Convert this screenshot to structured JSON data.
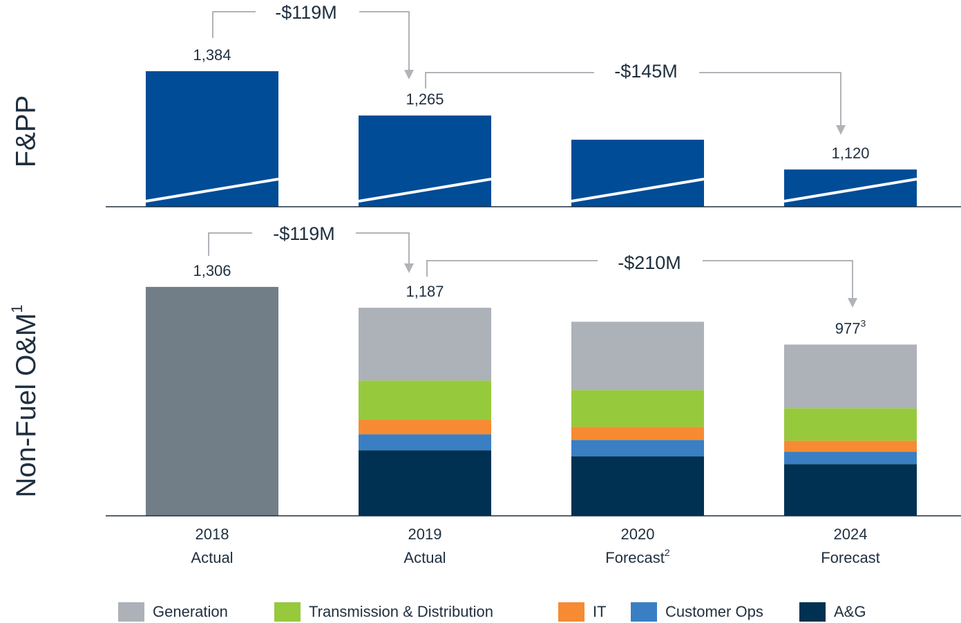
{
  "chart_data": [
    {
      "type": "bar",
      "ylabel": "F&PP",
      "categories": [
        "2018",
        "2019",
        "2020",
        "2024"
      ],
      "values": [
        1384,
        1265,
        1200,
        1120
      ],
      "value_labels": [
        "1,384",
        "1,265",
        null,
        "1,120"
      ],
      "color": "#004c97",
      "ylim": [
        1020,
        1420
      ],
      "axis_break": true,
      "annotations": [
        "-$119M",
        "-$145M"
      ]
    },
    {
      "type": "stacked_bar",
      "ylabel": "Non-Fuel O&M",
      "ylabel_note": "1",
      "categories": [
        "2018",
        "2019",
        "2020",
        "2024"
      ],
      "category_subtitles": [
        "Actual",
        "Actual",
        "Forecast",
        "Forecast"
      ],
      "category_notes": [
        null,
        null,
        "2",
        null
      ],
      "totals": {
        "values": [
          1306,
          1187,
          null,
          977
        ],
        "value_labels": [
          "1,306",
          "1,187",
          null,
          "977"
        ],
        "notes": [
          null,
          null,
          null,
          "3"
        ],
        "color": "#717e88"
      },
      "series": [
        {
          "name": "A&G",
          "color": "#003152",
          "values": [
            null,
            374,
            339,
            295
          ]
        },
        {
          "name": "Customer Ops",
          "color": "#3a7fc4",
          "values": [
            null,
            91,
            94,
            71
          ]
        },
        {
          "name": "IT",
          "color": "#f68b33",
          "values": [
            null,
            83,
            75,
            63
          ]
        },
        {
          "name": "Transmission & Distribution",
          "color": "#97c93d",
          "values": [
            null,
            224,
            209,
            185
          ]
        },
        {
          "name": "Generation",
          "color": "#adb1b8",
          "values": [
            null,
            415,
            390,
            363
          ]
        }
      ],
      "ylim": [
        0,
        1420
      ],
      "annotations": [
        "-$119M",
        "-$210M"
      ]
    }
  ]
}
